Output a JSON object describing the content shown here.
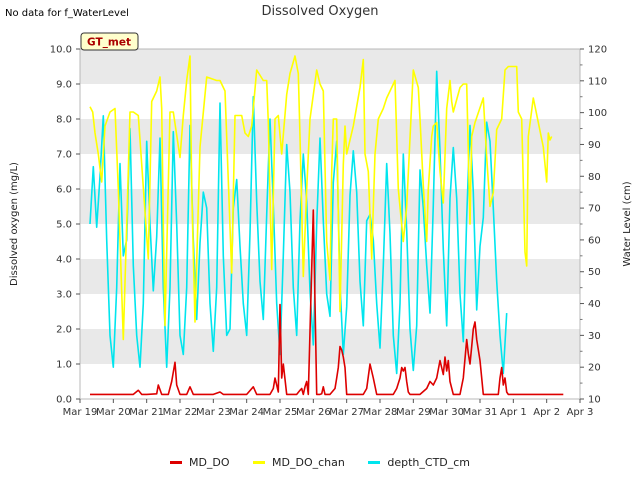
{
  "header": {
    "status_text": "No data for f_WaterLevel",
    "title": "Dissolved Oxygen"
  },
  "badge": {
    "label": "GT_met"
  },
  "colors": {
    "MD_DO": "#dd0000",
    "MD_DO_chan": "#ffff00",
    "depth_CTD_cm": "#00e5ee",
    "band": "#e9e9e9",
    "badge_bg": "#ffffcc",
    "badge_text": "#aa0000"
  },
  "chart_data": {
    "type": "line",
    "title": "Dissolved Oxygen",
    "ylabel": "Dissolved oxygen (mg/L)",
    "y2label": "Water Level (cm)",
    "ylim": [
      0,
      10
    ],
    "y2lim": [
      10,
      120
    ],
    "xlim": [
      "Mar 19",
      "Apr 3"
    ],
    "x_ticks": [
      "Mar 19",
      "Mar 20",
      "Mar 21",
      "Mar 22",
      "Mar 23",
      "Mar 24",
      "Mar 25",
      "Mar 26",
      "Mar 27",
      "Mar 28",
      "Mar 29",
      "Mar 30",
      "Mar 31",
      "Apr 1",
      "Apr 2",
      "Apr 3"
    ],
    "y_ticks": [
      "0.0",
      "1.0",
      "2.0",
      "3.0",
      "4.0",
      "5.0",
      "6.0",
      "7.0",
      "8.0",
      "9.0",
      "10.0"
    ],
    "y2_ticks": [
      "10",
      "20",
      "30",
      "40",
      "50",
      "60",
      "70",
      "80",
      "90",
      "100",
      "110",
      "120"
    ],
    "legend_position": "bottom",
    "grid": "alternating horizontal bands",
    "series": [
      {
        "name": "MD_DO",
        "axis": "left",
        "x_days": [
          0.3,
          1.6,
          1.75,
          1.85,
          2.0,
          2.3,
          2.35,
          2.45,
          2.65,
          2.75,
          2.85,
          2.9,
          3.0,
          3.2,
          3.3,
          3.4,
          4.0,
          4.2,
          4.3,
          5.0,
          5.2,
          5.3,
          5.5,
          5.6,
          5.7,
          5.8,
          5.85,
          5.9,
          5.95,
          6.0,
          6.05,
          6.1,
          6.2,
          6.5,
          6.6,
          6.65,
          6.7,
          6.75,
          6.8,
          6.85,
          7.0,
          7.1,
          7.2,
          7.25,
          7.3,
          7.35,
          7.4,
          7.5,
          7.65,
          7.7,
          7.75,
          7.8,
          7.85,
          7.9,
          7.95,
          8.0,
          8.1,
          8.2,
          8.3,
          8.5,
          8.6,
          8.7,
          8.8,
          8.9,
          9.0,
          9.2,
          9.4,
          9.5,
          9.6,
          9.65,
          9.7,
          9.75,
          9.8,
          9.85,
          9.9,
          10.0,
          10.2,
          10.4,
          10.5,
          10.6,
          10.7,
          10.8,
          10.9,
          10.95,
          11.0,
          11.05,
          11.1,
          11.2,
          11.4,
          11.5,
          11.6,
          11.65,
          11.7,
          11.75,
          11.8,
          11.85,
          11.9,
          12.0,
          12.1,
          12.3,
          12.5,
          12.55,
          12.6,
          12.65,
          12.7,
          12.75,
          12.8,
          12.85,
          12.9,
          13.2,
          13.5,
          13.8,
          14.0,
          14.3,
          14.5
        ],
        "values": [
          0.13,
          0.13,
          0.25,
          0.13,
          0.13,
          0.15,
          0.4,
          0.13,
          0.13,
          0.5,
          1.05,
          0.4,
          0.13,
          0.13,
          0.35,
          0.13,
          0.13,
          0.2,
          0.13,
          0.13,
          0.35,
          0.13,
          0.13,
          0.13,
          0.13,
          0.3,
          0.6,
          0.4,
          0.2,
          2.7,
          0.6,
          1.0,
          0.13,
          0.13,
          0.25,
          0.3,
          0.13,
          0.35,
          0.5,
          0.13,
          5.4,
          0.13,
          0.13,
          0.15,
          0.35,
          0.13,
          0.13,
          0.13,
          0.3,
          0.6,
          0.9,
          1.5,
          1.4,
          1.2,
          0.9,
          0.13,
          0.13,
          0.13,
          0.13,
          0.13,
          0.3,
          1.0,
          0.6,
          0.13,
          0.13,
          0.13,
          0.13,
          0.3,
          0.6,
          0.9,
          0.8,
          0.9,
          0.5,
          0.2,
          0.13,
          0.13,
          0.13,
          0.3,
          0.5,
          0.4,
          0.6,
          1.1,
          0.7,
          1.2,
          0.8,
          1.1,
          0.5,
          0.13,
          0.13,
          0.6,
          1.7,
          1.3,
          1.0,
          1.5,
          2.0,
          2.2,
          1.7,
          1.1,
          0.13,
          0.13,
          0.13,
          0.13,
          0.6,
          0.9,
          0.4,
          0.6,
          0.2,
          0.13,
          0.13,
          0.13,
          0.13,
          0.13,
          0.13,
          0.13,
          0.13
        ]
      },
      {
        "name": "MD_DO_chan",
        "axis": "left",
        "x_days": [
          0.3,
          0.38,
          0.45,
          0.55,
          0.65,
          0.75,
          0.9,
          1.05,
          1.15,
          1.3,
          1.45,
          1.5,
          1.6,
          1.75,
          2.05,
          2.15,
          2.3,
          2.4,
          2.45,
          2.5,
          2.55,
          2.7,
          2.8,
          3.0,
          3.1,
          3.2,
          3.3,
          3.35,
          3.45,
          3.6,
          3.8,
          4.1,
          4.2,
          4.35,
          4.55,
          4.65,
          4.75,
          4.85,
          4.95,
          5.05,
          5.15,
          5.3,
          5.5,
          5.6,
          5.65,
          5.75,
          5.85,
          5.95,
          6.05,
          6.2,
          6.3,
          6.45,
          6.55,
          6.6,
          6.7,
          6.8,
          6.9,
          7.1,
          7.2,
          7.3,
          7.4,
          7.5,
          7.55,
          7.6,
          7.7,
          7.8,
          7.9,
          7.95,
          8.0,
          8.2,
          8.4,
          8.5,
          8.55,
          8.65,
          8.75,
          8.85,
          8.95,
          9.1,
          9.2,
          9.35,
          9.45,
          9.55,
          9.7,
          9.8,
          10.0,
          10.15,
          10.2,
          10.3,
          10.4,
          10.45,
          10.55,
          10.6,
          10.7,
          10.8,
          10.9,
          11.0,
          11.1,
          11.15,
          11.2,
          11.4,
          11.5,
          11.6,
          11.7,
          11.75,
          11.85,
          12.1,
          12.2,
          12.3,
          12.4,
          12.5,
          12.6,
          12.65,
          12.75,
          12.85,
          13.1,
          13.15,
          13.25,
          13.35,
          13.4,
          13.45,
          13.6,
          13.9,
          14.0,
          14.05,
          14.1,
          14.15
        ],
        "values": [
          8.35,
          8.2,
          7.6,
          7.0,
          6.2,
          7.8,
          8.2,
          8.3,
          6.0,
          1.7,
          6.5,
          8.2,
          8.2,
          8.1,
          4.0,
          8.5,
          8.8,
          9.2,
          8.3,
          5.0,
          2.1,
          8.2,
          8.2,
          6.9,
          8.1,
          9.1,
          9.8,
          6.0,
          2.2,
          7.2,
          9.2,
          9.1,
          9.1,
          8.8,
          3.6,
          8.1,
          8.1,
          8.1,
          7.6,
          7.5,
          7.8,
          9.4,
          9.1,
          9.1,
          7.9,
          3.7,
          8.0,
          8.1,
          7.0,
          8.7,
          9.3,
          9.8,
          9.3,
          7.5,
          3.5,
          6.0,
          8.0,
          9.4,
          9.0,
          8.8,
          4.5,
          3.4,
          6.5,
          8.0,
          8.0,
          2.5,
          6.7,
          7.8,
          7.0,
          7.8,
          8.9,
          9.7,
          7.0,
          6.5,
          4.0,
          7.0,
          8.0,
          8.3,
          8.6,
          8.9,
          9.1,
          6.0,
          4.5,
          5.5,
          9.4,
          8.9,
          8.0,
          6.1,
          4.5,
          6.0,
          7.5,
          7.8,
          7.9,
          6.5,
          5.6,
          8.3,
          9.1,
          8.5,
          8.2,
          8.9,
          9.0,
          9.0,
          5.0,
          7.5,
          7.9,
          8.6,
          6.9,
          5.5,
          5.9,
          7.7,
          7.9,
          8.0,
          9.4,
          9.5,
          9.5,
          8.2,
          8.0,
          4.2,
          3.8,
          7.5,
          8.6,
          7.2,
          6.2,
          7.6,
          7.4,
          7.5
        ]
      },
      {
        "name": "depth_CTD_cm",
        "axis": "right",
        "x_days": [
          0.3,
          0.4,
          0.5,
          0.6,
          0.7,
          0.8,
          0.9,
          1.0,
          1.1,
          1.2,
          1.3,
          1.4,
          1.5,
          1.6,
          1.7,
          1.8,
          1.9,
          2.0,
          2.1,
          2.2,
          2.3,
          2.4,
          2.5,
          2.6,
          2.7,
          2.8,
          2.9,
          3.0,
          3.1,
          3.2,
          3.3,
          3.4,
          3.5,
          3.6,
          3.7,
          3.8,
          3.9,
          4.0,
          4.1,
          4.2,
          4.3,
          4.4,
          4.5,
          4.6,
          4.7,
          4.8,
          4.9,
          5.0,
          5.1,
          5.2,
          5.3,
          5.4,
          5.5,
          5.6,
          5.7,
          5.8,
          5.9,
          6.0,
          6.1,
          6.2,
          6.3,
          6.4,
          6.5,
          6.6,
          6.7,
          6.8,
          6.9,
          7.0,
          7.1,
          7.2,
          7.3,
          7.4,
          7.5,
          7.6,
          7.7,
          7.8,
          7.9,
          8.0,
          8.1,
          8.2,
          8.3,
          8.4,
          8.5,
          8.6,
          8.7,
          8.8,
          8.9,
          9.0,
          9.1,
          9.2,
          9.3,
          9.4,
          9.5,
          9.6,
          9.7,
          9.8,
          9.9,
          10.0,
          10.1,
          10.2,
          10.3,
          10.4,
          10.5,
          10.6,
          10.7,
          10.8,
          10.9,
          11.0,
          11.1,
          11.2,
          11.3,
          11.4,
          11.5,
          11.6,
          11.7,
          11.8,
          11.9,
          12.0,
          12.1,
          12.2,
          12.3,
          12.4,
          12.5,
          12.6,
          12.7,
          12.8
        ],
        "values": [
          65,
          83,
          64,
          80,
          99,
          60,
          30,
          20,
          45,
          84,
          55,
          60,
          95,
          52,
          30,
          20,
          40,
          91,
          65,
          44,
          61,
          92,
          45,
          20,
          45,
          94,
          65,
          30,
          24,
          45,
          96,
          60,
          35,
          59,
          75,
          70,
          40,
          25,
          45,
          103,
          55,
          30,
          32,
          70,
          79,
          58,
          40,
          30,
          62,
          105,
          72,
          47,
          35,
          68,
          98,
          71,
          40,
          24,
          55,
          90,
          75,
          45,
          30,
          66,
          87,
          72,
          44,
          27,
          65,
          92,
          66,
          43,
          36,
          78,
          91,
          46,
          24,
          39,
          74,
          88,
          75,
          47,
          33,
          66,
          68,
          60,
          40,
          26,
          52,
          84,
          62,
          30,
          18,
          40,
          87,
          63,
          32,
          19,
          33,
          82,
          70,
          52,
          37,
          71,
          113,
          88,
          57,
          33,
          73,
          89,
          73,
          43,
          28,
          67,
          96,
          75,
          38,
          58,
          67,
          97,
          91,
          70,
          47,
          30,
          18,
          37
        ]
      }
    ]
  }
}
